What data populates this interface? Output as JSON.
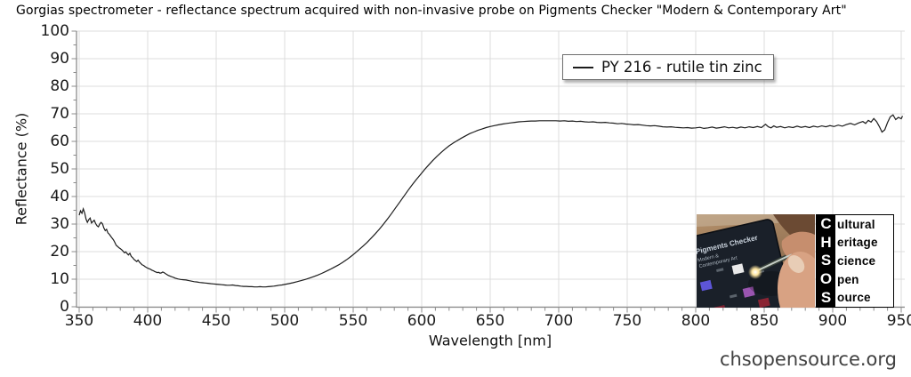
{
  "chart_data": {
    "type": "line",
    "title": "Gorgias spectrometer - reflectance spectrum acquired with non-invasive probe on Pigments Checker \"Modern & Contemporary Art\"",
    "xlabel": "Wavelength [nm]",
    "ylabel": "Reflectance (%)",
    "xlim": [
      350,
      950
    ],
    "ylim": [
      0,
      100
    ],
    "grid": true,
    "x_ticks": [
      350,
      400,
      450,
      500,
      550,
      600,
      650,
      700,
      750,
      800,
      850,
      900,
      950
    ],
    "y_ticks": [
      100,
      90,
      80,
      70,
      60,
      50,
      40,
      30,
      20,
      10,
      0
    ],
    "x_minor_step": 10,
    "y_minor_step": 5,
    "legend": {
      "label": "PY 216 - rutile tin zinc",
      "position": "top-right"
    },
    "series": [
      {
        "name": "PY 216 - rutile tin zinc",
        "color": "#1c1c1c",
        "points": [
          [
            350,
            33.2
          ],
          [
            351,
            34.8
          ],
          [
            352,
            33.9
          ],
          [
            353,
            35.5
          ],
          [
            354,
            34.0
          ],
          [
            355,
            31.8
          ],
          [
            356,
            30.6
          ],
          [
            357,
            31.6
          ],
          [
            358,
            32.2
          ],
          [
            359,
            30.4
          ],
          [
            360,
            30.9
          ],
          [
            361,
            31.4
          ],
          [
            362,
            30.2
          ],
          [
            363,
            29.4
          ],
          [
            364,
            29.0
          ],
          [
            365,
            30.0
          ],
          [
            366,
            30.6
          ],
          [
            367,
            30.1
          ],
          [
            368,
            28.6
          ],
          [
            369,
            27.6
          ],
          [
            370,
            28.1
          ],
          [
            371,
            26.8
          ],
          [
            372,
            26.3
          ],
          [
            373,
            25.6
          ],
          [
            374,
            24.9
          ],
          [
            375,
            24.3
          ],
          [
            376,
            23.4
          ],
          [
            377,
            22.3
          ],
          [
            378,
            21.9
          ],
          [
            379,
            21.4
          ],
          [
            380,
            21.1
          ],
          [
            381,
            20.7
          ],
          [
            382,
            20.2
          ],
          [
            383,
            19.6
          ],
          [
            384,
            19.9
          ],
          [
            385,
            19.3
          ],
          [
            386,
            18.8
          ],
          [
            387,
            19.4
          ],
          [
            388,
            18.3
          ],
          [
            389,
            17.8
          ],
          [
            390,
            17.2
          ],
          [
            391,
            16.8
          ],
          [
            392,
            16.4
          ],
          [
            393,
            16.9
          ],
          [
            394,
            16.2
          ],
          [
            395,
            15.7
          ],
          [
            396,
            15.2
          ],
          [
            397,
            15.0
          ],
          [
            398,
            14.6
          ],
          [
            399,
            14.3
          ],
          [
            400,
            14.0
          ],
          [
            401,
            13.8
          ],
          [
            402,
            13.6
          ],
          [
            403,
            13.3
          ],
          [
            404,
            13.1
          ],
          [
            405,
            12.8
          ],
          [
            406,
            12.6
          ],
          [
            407,
            12.4
          ],
          [
            408,
            12.5
          ],
          [
            409,
            12.2
          ],
          [
            410,
            12.3
          ],
          [
            411,
            12.6
          ],
          [
            412,
            12.4
          ],
          [
            413,
            12.0
          ],
          [
            414,
            11.7
          ],
          [
            415,
            11.4
          ],
          [
            416,
            11.2
          ],
          [
            417,
            11.0
          ],
          [
            418,
            10.8
          ],
          [
            419,
            10.6
          ],
          [
            420,
            10.4
          ],
          [
            422,
            10.1
          ],
          [
            424,
            9.9
          ],
          [
            426,
            9.8
          ],
          [
            428,
            9.7
          ],
          [
            430,
            9.5
          ],
          [
            432,
            9.3
          ],
          [
            434,
            9.1
          ],
          [
            436,
            9.0
          ],
          [
            438,
            8.8
          ],
          [
            440,
            8.7
          ],
          [
            442,
            8.6
          ],
          [
            444,
            8.5
          ],
          [
            446,
            8.4
          ],
          [
            448,
            8.3
          ],
          [
            450,
            8.2
          ],
          [
            452,
            8.1
          ],
          [
            454,
            8.0
          ],
          [
            456,
            7.9
          ],
          [
            458,
            7.8
          ],
          [
            460,
            7.8
          ],
          [
            462,
            7.9
          ],
          [
            464,
            7.7
          ],
          [
            466,
            7.6
          ],
          [
            468,
            7.5
          ],
          [
            470,
            7.4
          ],
          [
            472,
            7.4
          ],
          [
            474,
            7.3
          ],
          [
            476,
            7.3
          ],
          [
            478,
            7.2
          ],
          [
            480,
            7.2
          ],
          [
            482,
            7.3
          ],
          [
            484,
            7.2
          ],
          [
            486,
            7.2
          ],
          [
            488,
            7.3
          ],
          [
            490,
            7.4
          ],
          [
            492,
            7.5
          ],
          [
            494,
            7.6
          ],
          [
            496,
            7.8
          ],
          [
            498,
            7.9
          ],
          [
            500,
            8.1
          ],
          [
            503,
            8.4
          ],
          [
            506,
            8.7
          ],
          [
            509,
            9.1
          ],
          [
            512,
            9.5
          ],
          [
            515,
            9.9
          ],
          [
            518,
            10.4
          ],
          [
            521,
            10.9
          ],
          [
            524,
            11.5
          ],
          [
            527,
            12.1
          ],
          [
            530,
            12.8
          ],
          [
            533,
            13.5
          ],
          [
            536,
            14.3
          ],
          [
            539,
            15.1
          ],
          [
            542,
            16.0
          ],
          [
            545,
            17.0
          ],
          [
            548,
            18.1
          ],
          [
            551,
            19.3
          ],
          [
            554,
            20.6
          ],
          [
            557,
            21.9
          ],
          [
            560,
            23.3
          ],
          [
            563,
            24.8
          ],
          [
            566,
            26.4
          ],
          [
            569,
            28.1
          ],
          [
            572,
            29.9
          ],
          [
            575,
            31.8
          ],
          [
            578,
            33.8
          ],
          [
            581,
            35.9
          ],
          [
            584,
            38.0
          ],
          [
            587,
            40.1
          ],
          [
            590,
            42.2
          ],
          [
            593,
            44.2
          ],
          [
            596,
            46.1
          ],
          [
            599,
            47.9
          ],
          [
            602,
            49.7
          ],
          [
            605,
            51.4
          ],
          [
            608,
            53.0
          ],
          [
            611,
            54.5
          ],
          [
            614,
            55.9
          ],
          [
            617,
            57.2
          ],
          [
            620,
            58.4
          ],
          [
            623,
            59.4
          ],
          [
            626,
            60.3
          ],
          [
            629,
            61.2
          ],
          [
            632,
            62.0
          ],
          [
            635,
            62.8
          ],
          [
            638,
            63.4
          ],
          [
            641,
            64.0
          ],
          [
            644,
            64.5
          ],
          [
            647,
            65.0
          ],
          [
            650,
            65.4
          ],
          [
            653,
            65.7
          ],
          [
            656,
            66.0
          ],
          [
            659,
            66.3
          ],
          [
            662,
            66.5
          ],
          [
            665,
            66.7
          ],
          [
            668,
            66.9
          ],
          [
            671,
            67.1
          ],
          [
            674,
            67.2
          ],
          [
            677,
            67.3
          ],
          [
            680,
            67.4
          ],
          [
            683,
            67.4
          ],
          [
            686,
            67.5
          ],
          [
            689,
            67.5
          ],
          [
            692,
            67.5
          ],
          [
            695,
            67.5
          ],
          [
            698,
            67.5
          ],
          [
            701,
            67.4
          ],
          [
            704,
            67.5
          ],
          [
            707,
            67.3
          ],
          [
            710,
            67.4
          ],
          [
            713,
            67.2
          ],
          [
            716,
            67.3
          ],
          [
            719,
            67.1
          ],
          [
            722,
            67.0
          ],
          [
            725,
            67.1
          ],
          [
            728,
            66.9
          ],
          [
            731,
            66.8
          ],
          [
            734,
            66.9
          ],
          [
            737,
            66.7
          ],
          [
            740,
            66.6
          ],
          [
            743,
            66.4
          ],
          [
            746,
            66.5
          ],
          [
            749,
            66.3
          ],
          [
            752,
            66.2
          ],
          [
            755,
            66.0
          ],
          [
            758,
            66.1
          ],
          [
            761,
            65.9
          ],
          [
            764,
            65.7
          ],
          [
            767,
            65.6
          ],
          [
            770,
            65.7
          ],
          [
            773,
            65.5
          ],
          [
            776,
            65.3
          ],
          [
            779,
            65.2
          ],
          [
            782,
            65.3
          ],
          [
            785,
            65.1
          ],
          [
            788,
            65.0
          ],
          [
            791,
            64.9
          ],
          [
            794,
            65.0
          ],
          [
            797,
            64.8
          ],
          [
            800,
            64.9
          ],
          [
            803,
            65.1
          ],
          [
            806,
            64.7
          ],
          [
            809,
            64.9
          ],
          [
            812,
            65.2
          ],
          [
            815,
            64.8
          ],
          [
            818,
            65.0
          ],
          [
            821,
            65.3
          ],
          [
            824,
            64.9
          ],
          [
            827,
            65.1
          ],
          [
            830,
            64.8
          ],
          [
            833,
            65.2
          ],
          [
            836,
            64.9
          ],
          [
            839,
            65.3
          ],
          [
            842,
            65.0
          ],
          [
            845,
            65.4
          ],
          [
            848,
            65.0
          ],
          [
            851,
            66.2
          ],
          [
            853,
            65.3
          ],
          [
            855,
            64.9
          ],
          [
            857,
            65.6
          ],
          [
            859,
            65.1
          ],
          [
            862,
            65.4
          ],
          [
            865,
            64.9
          ],
          [
            868,
            65.3
          ],
          [
            871,
            65.0
          ],
          [
            874,
            65.5
          ],
          [
            877,
            65.1
          ],
          [
            880,
            65.4
          ],
          [
            883,
            65.0
          ],
          [
            886,
            65.5
          ],
          [
            889,
            65.2
          ],
          [
            892,
            65.6
          ],
          [
            895,
            65.3
          ],
          [
            898,
            65.7
          ],
          [
            901,
            65.4
          ],
          [
            904,
            65.9
          ],
          [
            907,
            65.5
          ],
          [
            910,
            66.1
          ],
          [
            913,
            66.5
          ],
          [
            916,
            66.0
          ],
          [
            919,
            66.7
          ],
          [
            922,
            67.2
          ],
          [
            924,
            66.5
          ],
          [
            926,
            67.6
          ],
          [
            928,
            67.0
          ],
          [
            930,
            68.3
          ],
          [
            932,
            67.2
          ],
          [
            934,
            65.4
          ],
          [
            936,
            63.4
          ],
          [
            938,
            64.2
          ],
          [
            940,
            66.8
          ],
          [
            942,
            68.9
          ],
          [
            944,
            69.6
          ],
          [
            946,
            67.9
          ],
          [
            948,
            68.7
          ],
          [
            950,
            68.2
          ],
          [
            951,
            69.2
          ]
        ]
      }
    ]
  },
  "colors": {
    "background": "#ffffff",
    "grid": "#dcdcdc",
    "spine": "#8c8c8c",
    "curve": "#1c1c1c"
  },
  "logo": {
    "photo": {
      "line1": "Pigments Checker",
      "line2": "Modern &",
      "line3": "Contemporary Art"
    },
    "chsos": {
      "rows": [
        {
          "letter": "C",
          "word": "ultural"
        },
        {
          "letter": "H",
          "word": "eritage"
        },
        {
          "letter": "S",
          "word": "cience"
        },
        {
          "letter": "O",
          "word": "pen"
        },
        {
          "letter": "S",
          "word": "ource"
        }
      ]
    }
  },
  "footer": {
    "watermark": "chsopensource.org"
  }
}
